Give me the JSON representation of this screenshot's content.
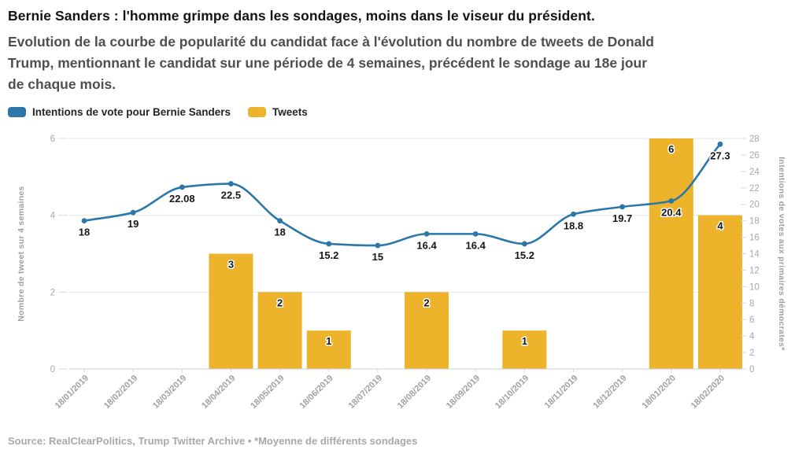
{
  "header": {
    "title": "Bernie Sanders : l'homme grimpe dans les sondages, moins dans le viseur du président.",
    "subtitle_lines": [
      "Evolution de la courbe de popularité du candidat face à l'évolution du nombre de tweets de Donald",
      "Trump, mentionnant le candidat sur une période de 4 semaines, précédent le sondage au 18e jour",
      "de chaque mois."
    ]
  },
  "chart_data": {
    "type": "combo",
    "title": "Bernie Sanders : l'homme grimpe dans les sondages, moins dans le viseur du président.",
    "categories": [
      "18/01/2019",
      "18/02/2019",
      "18/03/2019",
      "18/04/2019",
      "18/05/2019",
      "18/06/2019",
      "18/07/2019",
      "18/08/2019",
      "18/09/2019",
      "18/10/2019",
      "18/11/2019",
      "18/12/2019",
      "18/01/2020",
      "18/02/2020"
    ],
    "series": [
      {
        "name": "Intentions de vote pour Bernie Sanders",
        "type": "line",
        "axis": "right",
        "color": "#2b77a8",
        "values": [
          18,
          19,
          22.08,
          22.5,
          18,
          15.2,
          15,
          16.4,
          16.4,
          15.2,
          18.8,
          19.7,
          20.4,
          27.3
        ]
      },
      {
        "name": "Tweets",
        "type": "bar",
        "axis": "left",
        "color": "#edb32a",
        "values": [
          0,
          0,
          0,
          3,
          2,
          1,
          0,
          2,
          0,
          1,
          0,
          0,
          6,
          4
        ]
      }
    ],
    "left_axis": {
      "title": "Nombre de tweet sur 4 semaines",
      "ticks": [
        0,
        2,
        4,
        6
      ],
      "range": [
        0,
        6
      ]
    },
    "right_axis": {
      "title": "Intentions de votes aux primaires démocrates*",
      "ticks": [
        0,
        2,
        4,
        6,
        8,
        10,
        12,
        14,
        16,
        18,
        20,
        22,
        24,
        26,
        28
      ],
      "range": [
        0,
        28
      ]
    },
    "grid": "horizontal gridlines at left-axis ticks",
    "legend_position": "top-left",
    "x_tick_rotation": -45,
    "data_labels": "shown for every point and every non-zero bar"
  },
  "footer": {
    "source": "Source: RealClearPolitics, Trump Twitter Archive • *Moyenne de différents sondages"
  }
}
